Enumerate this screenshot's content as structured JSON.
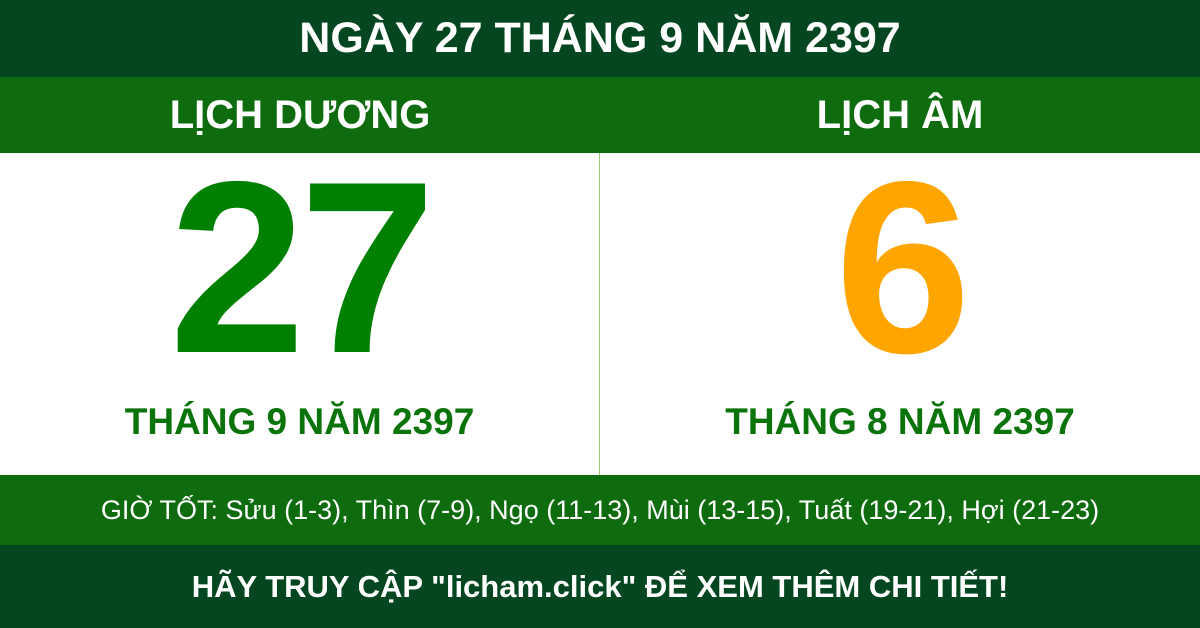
{
  "title": "NGÀY 27 THÁNG 9 NĂM 2397",
  "solar": {
    "heading": "LỊCH DƯƠNG",
    "day": "27",
    "month_year": "THÁNG 9 NĂM 2397"
  },
  "lunar": {
    "heading": "LỊCH ÂM",
    "day": "6",
    "month_year": "THÁNG 8 NĂM 2397"
  },
  "good_hours": "GIỜ TỐT: Sửu (1-3), Thìn (7-9), Ngọ (11-13), Mùi (13-15), Tuất (19-21), Hợi (21-23)",
  "footer": "HÃY TRUY CẬP \"licham.click\" ĐỂ XEM THÊM CHI TIẾT!",
  "colors": {
    "dark_green": "#03461f",
    "green_band": "#0e6b0e",
    "solar_day": "#008000",
    "lunar_day": "#ffa500"
  }
}
